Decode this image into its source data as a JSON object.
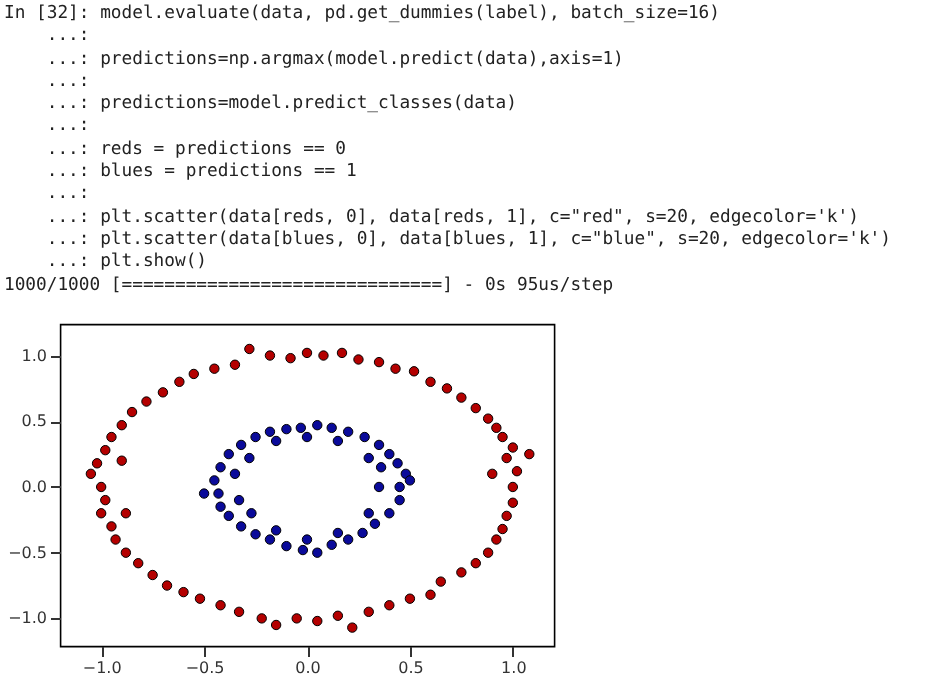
{
  "chart_data": {
    "type": "scatter",
    "annotations": [
      "In [32]: model.evaluate(data, pd.get_dummies(label), batch_size=16)",
      "    ...:",
      "    ...: predictions=np.argmax(model.predict(data),axis=1)",
      "    ...:",
      "    ...: predictions=model.predict_classes(data)",
      "    ...:",
      "    ...: reds = predictions == 0",
      "    ...: blues = predictions == 1",
      "    ...:",
      "    ...: plt.scatter(data[reds, 0], data[reds, 1], c=\"red\", s=20, edgecolor='k')",
      "    ...: plt.scatter(data[blues, 0], data[blues, 1], c=\"blue\", s=20, edgecolor='k')",
      "    ...: plt.show()",
      "1000/1000 [==============================] - 0s 95us/step"
    ],
    "series": [
      {
        "color": "#b40000",
        "x": [
          1.0,
          1.02,
          0.97,
          1.0,
          0.95,
          0.92,
          0.88,
          0.82,
          0.75,
          0.68,
          0.6,
          0.52,
          0.43,
          0.35,
          0.25,
          0.17,
          0.08,
          0.0,
          -0.08,
          -0.18,
          -0.28,
          -0.35,
          -0.45,
          -0.55,
          -0.62,
          -0.7,
          -0.78,
          -0.85,
          -0.9,
          -0.95,
          -0.98,
          -1.02,
          -1.05,
          -1.0,
          -0.98,
          -1.0,
          -0.95,
          -0.93,
          -0.88,
          -0.82,
          -0.75,
          -0.68,
          -0.6,
          -0.52,
          -0.42,
          -0.33,
          -0.22,
          -0.15,
          -0.05,
          0.05,
          0.15,
          0.22,
          0.3,
          0.4,
          0.5,
          0.6,
          0.65,
          0.75,
          0.82,
          0.88,
          0.92,
          0.95,
          0.97,
          1.0,
          1.08,
          0.9,
          -0.9,
          -0.88
        ],
        "values": [
          0.0,
          0.12,
          0.22,
          0.3,
          0.38,
          0.45,
          0.52,
          0.6,
          0.68,
          0.75,
          0.8,
          0.88,
          0.9,
          0.95,
          0.97,
          1.02,
          1.0,
          1.02,
          0.98,
          1.0,
          1.05,
          0.93,
          0.9,
          0.86,
          0.8,
          0.72,
          0.65,
          0.57,
          0.47,
          0.38,
          0.28,
          0.18,
          0.1,
          0.0,
          -0.1,
          -0.2,
          -0.3,
          -0.4,
          -0.5,
          -0.58,
          -0.67,
          -0.75,
          -0.8,
          -0.85,
          -0.9,
          -0.95,
          -1.0,
          -1.05,
          -1.0,
          -1.02,
          -0.98,
          -1.07,
          -0.95,
          -0.9,
          -0.85,
          -0.82,
          -0.72,
          -0.65,
          -0.58,
          -0.5,
          -0.4,
          -0.32,
          -0.22,
          -0.12,
          0.25,
          0.1,
          0.2,
          -0.2
        ]
      },
      {
        "color": "#0a0a9a",
        "x": [
          0.45,
          0.48,
          0.44,
          0.4,
          0.35,
          0.28,
          0.2,
          0.12,
          0.05,
          -0.03,
          -0.1,
          -0.18,
          -0.25,
          -0.32,
          -0.38,
          -0.42,
          -0.45,
          -0.5,
          -0.43,
          -0.42,
          -0.38,
          -0.32,
          -0.25,
          -0.18,
          -0.1,
          -0.02,
          0.05,
          0.12,
          0.2,
          0.27,
          0.33,
          0.4,
          0.45,
          0.5,
          0.35,
          0.36,
          -0.35,
          -0.33,
          0.0,
          0.0,
          0.15,
          -0.15,
          0.15,
          -0.15,
          0.3,
          0.3,
          -0.28,
          -0.27
        ],
        "values": [
          0.0,
          0.1,
          0.18,
          0.25,
          0.32,
          0.38,
          0.42,
          0.45,
          0.47,
          0.45,
          0.44,
          0.42,
          0.38,
          0.32,
          0.25,
          0.15,
          0.05,
          -0.05,
          -0.05,
          -0.15,
          -0.22,
          -0.3,
          -0.36,
          -0.4,
          -0.45,
          -0.48,
          -0.5,
          -0.44,
          -0.4,
          -0.35,
          -0.28,
          -0.2,
          -0.1,
          0.05,
          0.0,
          0.15,
          0.1,
          -0.1,
          0.38,
          -0.4,
          0.35,
          0.35,
          -0.35,
          -0.33,
          -0.2,
          0.22,
          0.22,
          -0.2
        ]
      }
    ],
    "marker": "circle",
    "xlim": [
      -1.2,
      1.2
    ],
    "ylim": [
      -1.21,
      1.24
    ],
    "xticks": [
      {
        "value": -1,
        "label": "−1.0"
      },
      {
        "value": -0.5,
        "label": "−0.5"
      },
      {
        "value": 0,
        "label": "0.0"
      },
      {
        "value": 0.5,
        "label": "0.5"
      },
      {
        "value": 1,
        "label": "1.0"
      }
    ],
    "yticks": [
      {
        "value": -1,
        "label": "−1.0"
      },
      {
        "value": -0.5,
        "label": "−0.5"
      },
      {
        "value": 0,
        "label": "0.0"
      },
      {
        "value": 0.5,
        "label": "0.5"
      },
      {
        "value": 1,
        "label": "1.0"
      }
    ]
  }
}
